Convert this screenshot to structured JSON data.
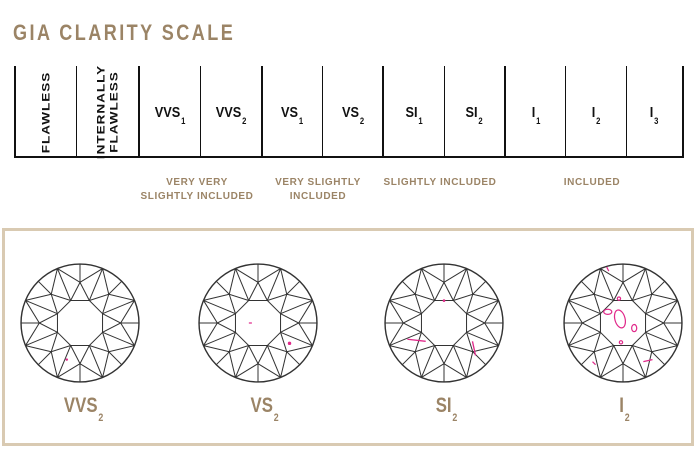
{
  "title": "GIA CLARITY SCALE",
  "scale": [
    {
      "text": "FLAWLESS",
      "vertical": true
    },
    {
      "text": "INTERNALLY\nFLAWLESS",
      "vertical": true
    },
    {
      "base": "VVS",
      "sub": "1"
    },
    {
      "base": "VVS",
      "sub": "2"
    },
    {
      "base": "VS",
      "sub": "1"
    },
    {
      "base": "VS",
      "sub": "2"
    },
    {
      "base": "SI",
      "sub": "1"
    },
    {
      "base": "SI",
      "sub": "2"
    },
    {
      "base": "I",
      "sub": "1"
    },
    {
      "base": "I",
      "sub": "2"
    },
    {
      "base": "I",
      "sub": "3"
    }
  ],
  "groups": [
    "VERY VERY\nSLIGHTLY INCLUDED",
    "VERY SLIGHTLY\nINCLUDED",
    "SLIGHTLY INCLUDED",
    "INCLUDED"
  ],
  "examples": [
    {
      "base": "VVS",
      "sub": "2"
    },
    {
      "base": "VS",
      "sub": "2"
    },
    {
      "base": "SI",
      "sub": "2"
    },
    {
      "base": "I",
      "sub": "2"
    }
  ],
  "colors": {
    "accent": "#9b8466",
    "line": "#111111",
    "inclusion": "#e0298a",
    "panel_border": "#d9cab2"
  }
}
